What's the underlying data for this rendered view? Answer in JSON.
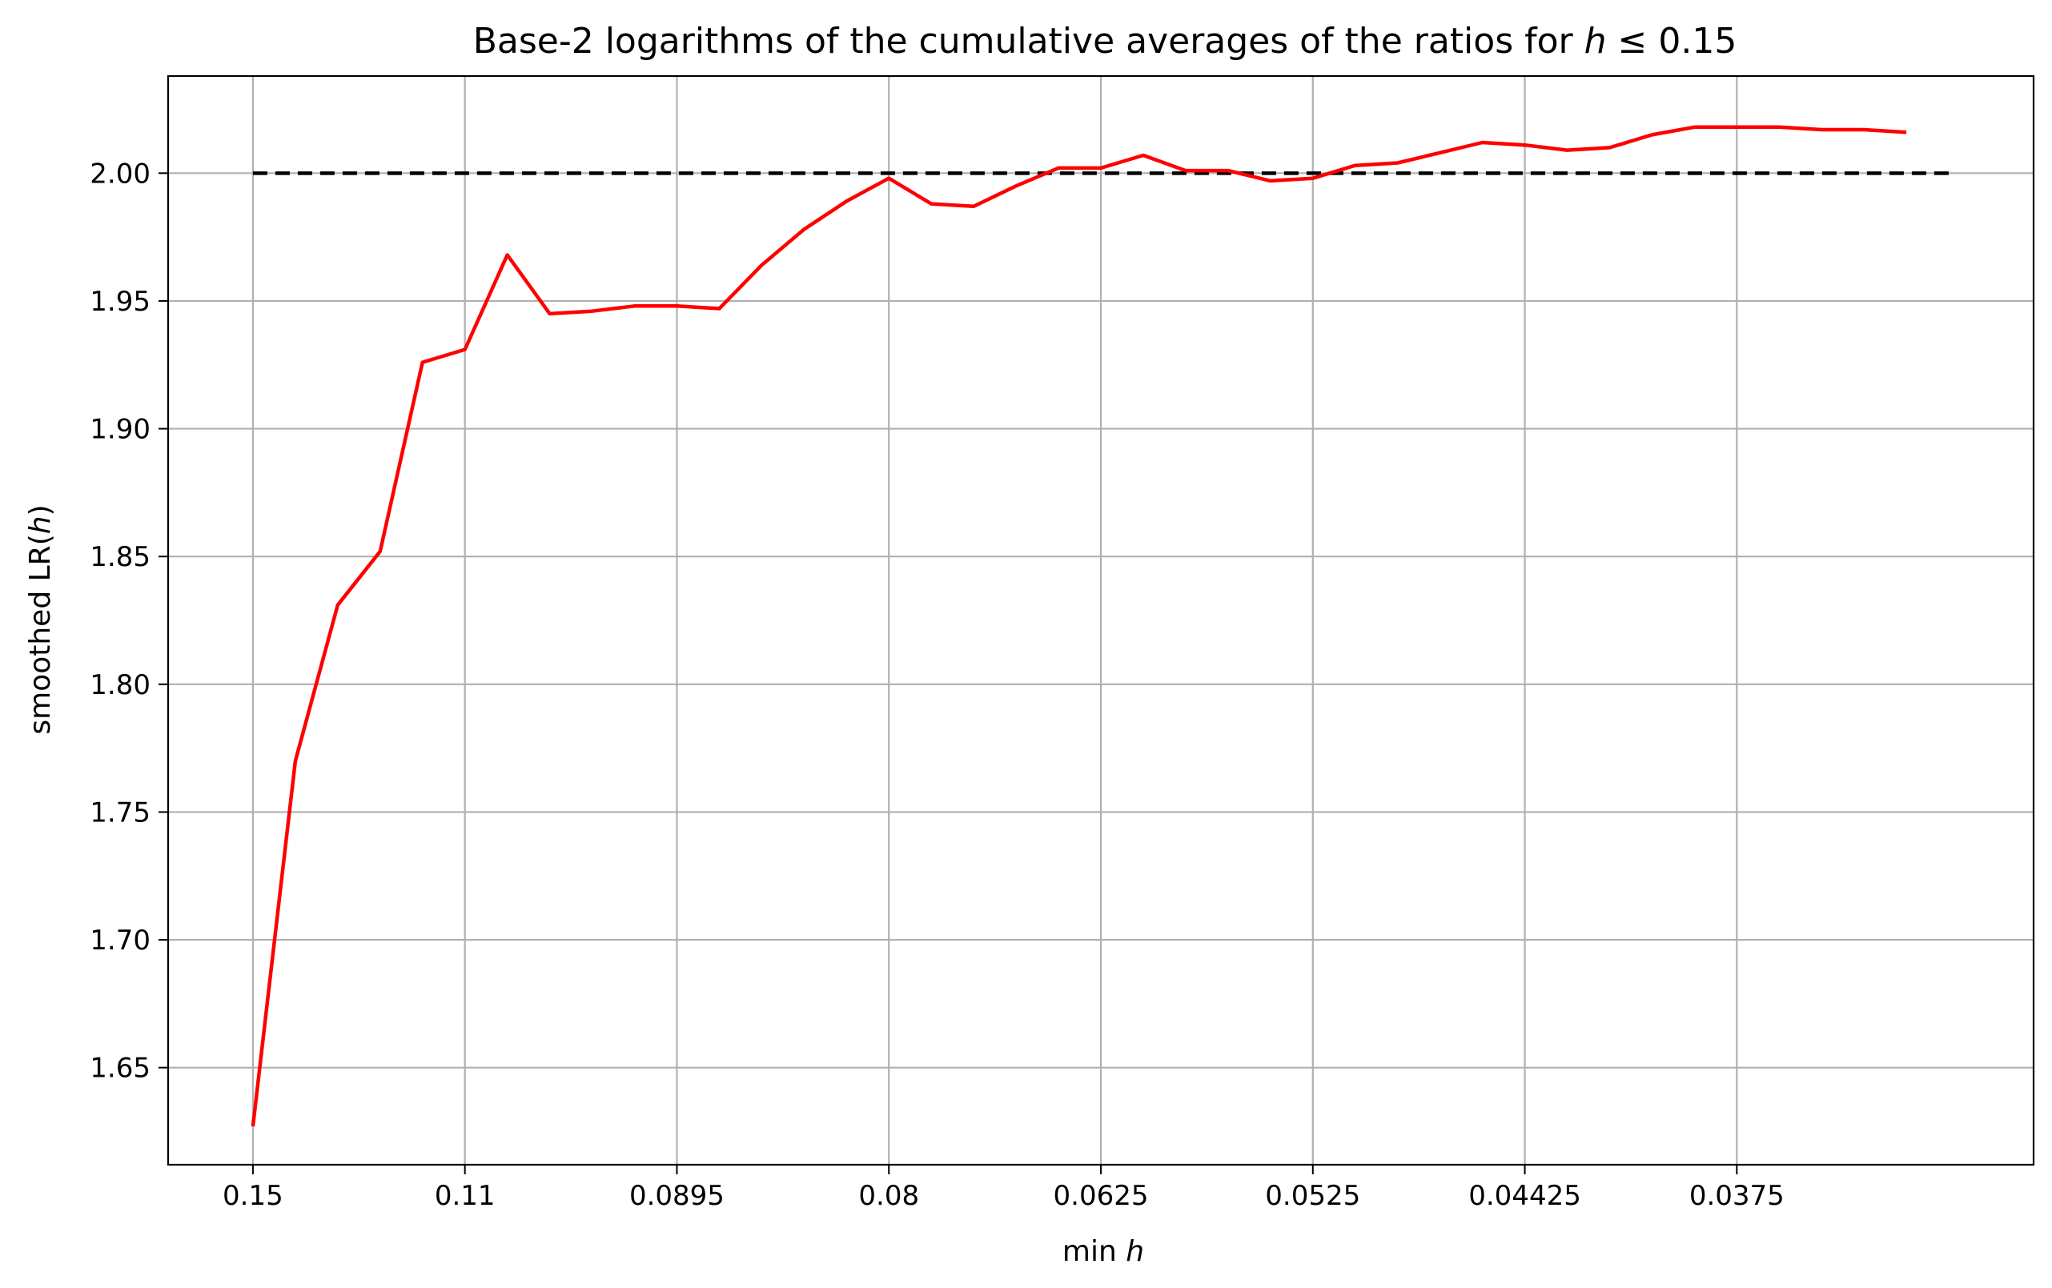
{
  "chart_data": {
    "type": "line",
    "title_prefix": "Base-2 logarithms of the cumulative averages of the ratios for ",
    "title_var": "h",
    "title_suffix": " ≤ 0.15",
    "xlabel_prefix": "min ",
    "xlabel_var": "h",
    "ylabel_prefix": "smoothed LR(",
    "ylabel_var": "h",
    "ylabel_suffix": ")",
    "x_ticks": [
      {
        "index": 0,
        "label": "0.15"
      },
      {
        "index": 5,
        "label": "0.11"
      },
      {
        "index": 10,
        "label": "0.0895"
      },
      {
        "index": 15,
        "label": "0.08"
      },
      {
        "index": 20,
        "label": "0.0625"
      },
      {
        "index": 25,
        "label": "0.0525"
      },
      {
        "index": 30,
        "label": "0.04425"
      },
      {
        "index": 35,
        "label": "0.0375"
      }
    ],
    "y_ticks": [
      1.65,
      1.7,
      1.75,
      1.8,
      1.85,
      1.9,
      1.95,
      2.0
    ],
    "xlim": [
      -2,
      42
    ],
    "ylim": [
      1.612,
      2.038
    ],
    "grid": true,
    "series": [
      {
        "color": "#ff0000",
        "values": [
          1.627,
          1.77,
          1.831,
          1.852,
          1.926,
          1.931,
          1.968,
          1.945,
          1.946,
          1.948,
          1.948,
          1.947,
          1.964,
          1.978,
          1.989,
          1.998,
          1.988,
          1.987,
          1.995,
          2.002,
          2.002,
          2.007,
          2.001,
          2.001,
          1.997,
          1.998,
          2.003,
          2.004,
          2.008,
          2.012,
          2.011,
          2.009,
          2.01,
          2.015,
          2.018,
          2.018,
          2.018,
          2.017,
          2.017,
          2.016
        ]
      },
      {
        "color": "#000000",
        "style": "dashed",
        "values": [
          2.0,
          2.0
        ]
      }
    ],
    "reference_x_index": [
      0,
      40
    ]
  }
}
